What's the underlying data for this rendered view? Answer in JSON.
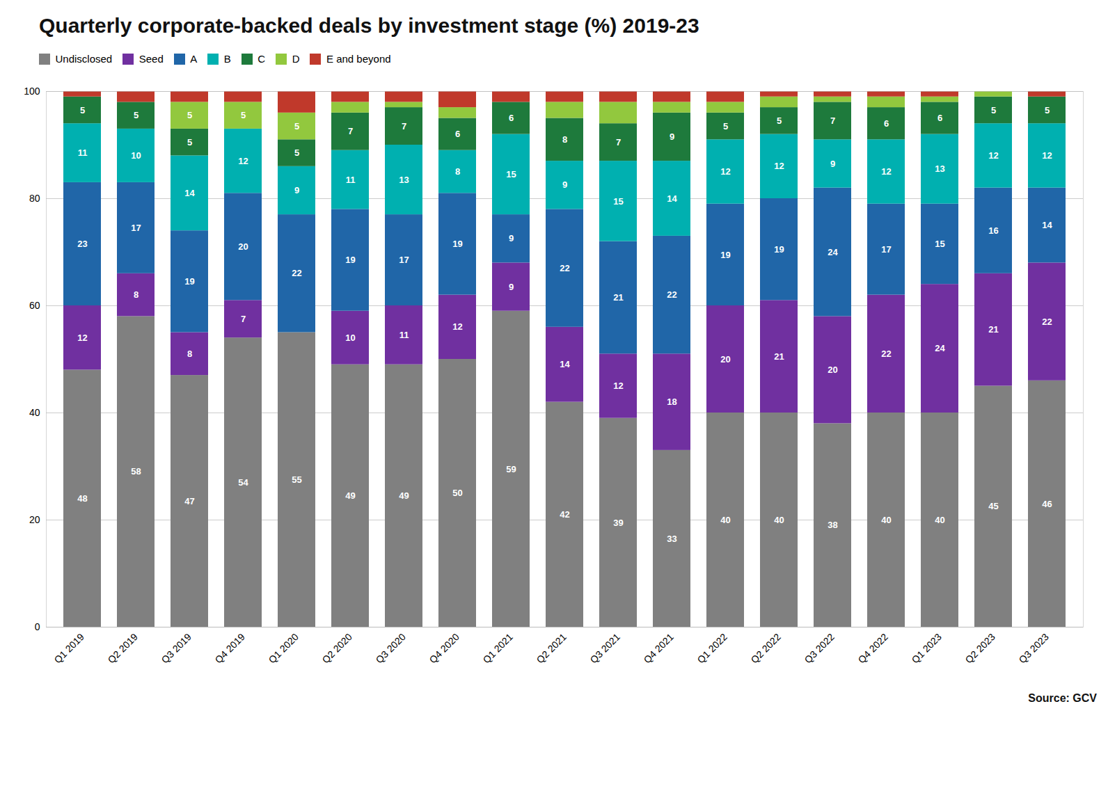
{
  "chart_data": {
    "type": "bar",
    "stacked": true,
    "title": "Quarterly corporate-backed deals by investment stage (%) 2019-23",
    "source": "Source: GCV",
    "categories": [
      "Q1 2019",
      "Q2 2019",
      "Q3 2019",
      "Q4 2019",
      "Q1 2020",
      "Q2 2020",
      "Q3 2020",
      "Q4 2020",
      "Q1 2021",
      "Q2 2021",
      "Q3 2021",
      "Q4 2021",
      "Q1 2022",
      "Q2 2022",
      "Q3 2022",
      "Q4 2022",
      "Q1 2023",
      "Q2 2023",
      "Q3 2023"
    ],
    "series": [
      {
        "name": "Undisclosed",
        "color": "#808080",
        "values": [
          48,
          58,
          47,
          54,
          55,
          49,
          49,
          50,
          59,
          42,
          39,
          33,
          40,
          40,
          38,
          40,
          40,
          45,
          46
        ],
        "value_labels": [
          "48",
          "58",
          "47",
          "54",
          "55",
          "49",
          "49",
          "50",
          "59",
          "42",
          "39",
          "33",
          "40",
          "40",
          "38",
          "40",
          "40",
          "45",
          "46"
        ]
      },
      {
        "name": "Seed",
        "color": "#7030a0",
        "values": [
          12,
          8,
          8,
          7,
          0,
          10,
          11,
          12,
          9,
          14,
          12,
          18,
          20,
          21,
          20,
          22,
          24,
          21,
          22
        ],
        "value_labels": [
          "12",
          "8",
          "8",
          "7",
          null,
          "10",
          "11",
          "12",
          "9",
          "14",
          "12",
          "18",
          "20",
          "21",
          "20",
          "22",
          "24",
          "21",
          "22"
        ]
      },
      {
        "name": "A",
        "color": "#2066a8",
        "values": [
          23,
          17,
          19,
          20,
          22,
          19,
          17,
          19,
          9,
          22,
          21,
          22,
          19,
          19,
          24,
          17,
          15,
          16,
          14
        ],
        "value_labels": [
          "23",
          "17",
          "19",
          "20",
          "22",
          "19",
          "17",
          "19",
          "9",
          "22",
          "21",
          "22",
          "19",
          "19",
          "24",
          "17",
          "15",
          "16",
          "14"
        ]
      },
      {
        "name": "B",
        "color": "#00b0b0",
        "values": [
          11,
          10,
          14,
          12,
          9,
          11,
          13,
          8,
          15,
          9,
          15,
          14,
          12,
          12,
          9,
          12,
          13,
          12,
          12
        ],
        "value_labels": [
          "11",
          "10",
          "14",
          "12",
          "9",
          "11",
          "13",
          "8",
          "15",
          "9",
          "15",
          "14",
          "12",
          "12",
          "9",
          "12",
          "13",
          "12",
          "12"
        ]
      },
      {
        "name": "C",
        "color": "#1e7a3c",
        "values": [
          5,
          5,
          5,
          0,
          5,
          7,
          7,
          6,
          6,
          8,
          7,
          9,
          5,
          5,
          7,
          6,
          6,
          5,
          5
        ],
        "value_labels": [
          "5",
          "5",
          "5",
          null,
          "5",
          "7",
          "7",
          "6",
          "6",
          "8",
          "7",
          "9",
          "5",
          "5",
          "7",
          "6",
          "6",
          "5",
          "5"
        ]
      },
      {
        "name": "D",
        "color": "#92c83e",
        "values": [
          0,
          0,
          5,
          5,
          5,
          2,
          1,
          2,
          0,
          3,
          4,
          2,
          2,
          2,
          1,
          2,
          1,
          1,
          0
        ],
        "value_labels": [
          null,
          null,
          "5",
          "5",
          "5",
          null,
          null,
          null,
          null,
          null,
          null,
          null,
          null,
          null,
          null,
          null,
          null,
          null,
          null
        ]
      },
      {
        "name": "E and beyond",
        "color": "#c0392b",
        "values": [
          1,
          2,
          2,
          2,
          4,
          2,
          2,
          3,
          2,
          2,
          2,
          2,
          2,
          1,
          1,
          1,
          1,
          0,
          1
        ],
        "value_labels": [
          null,
          null,
          null,
          null,
          null,
          null,
          null,
          null,
          null,
          null,
          null,
          null,
          null,
          null,
          null,
          null,
          null,
          null,
          null
        ]
      }
    ],
    "ylim": [
      0,
      100
    ],
    "yticks": [
      0,
      20,
      40,
      60,
      80,
      100
    ],
    "grid": true,
    "legend": "upper left",
    "data_labels": true
  }
}
